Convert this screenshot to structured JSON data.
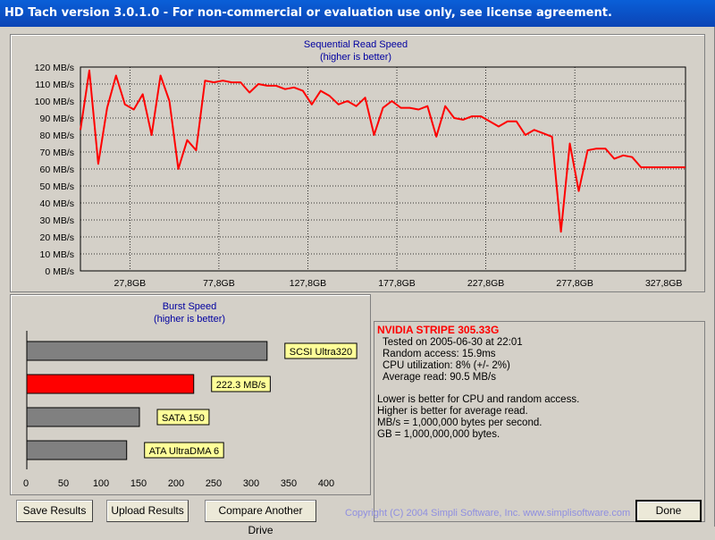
{
  "window": {
    "title": "HD Tach version 3.0.1.0  - For non-commercial or evaluation use only, see license agreement."
  },
  "read_chart": {
    "title": "Sequential Read Speed",
    "subtitle": "(higher is better)",
    "y_ticks": [
      "120 MB/s",
      "110 MB/s",
      "100 MB/s",
      "90 MB/s",
      "80 MB/s",
      "70 MB/s",
      "60 MB/s",
      "50 MB/s",
      "40 MB/s",
      "30 MB/s",
      "20 MB/s",
      "10 MB/s",
      "0 MB/s"
    ],
    "x_ticks": [
      "27,8GB",
      "77,8GB",
      "127,8GB",
      "177,8GB",
      "227,8GB",
      "277,8GB",
      "327,8GB"
    ]
  },
  "burst_chart": {
    "title": "Burst Speed",
    "subtitle": "(higher is better)",
    "x_ticks": [
      "0",
      "50",
      "100",
      "150",
      "200",
      "250",
      "300",
      "350",
      "400"
    ],
    "bars": [
      {
        "label": "SCSI Ultra320",
        "value": 320,
        "color": "#808080"
      },
      {
        "label": "222.3 MB/s",
        "value": 222.3,
        "color": "#ff0000"
      },
      {
        "label": "SATA 150",
        "value": 150,
        "color": "#808080"
      },
      {
        "label": "ATA UltraDMA 6",
        "value": 133,
        "color": "#808080"
      }
    ]
  },
  "results": {
    "drive_name": "NVIDIA  STRIPE  305.33G",
    "tested_on": "Tested on 2005-06-30 at 22:01",
    "random_access": "Random access: 15.9ms",
    "cpu_utilization": "CPU utilization: 8% (+/- 2%)",
    "average_read": "Average read: 90.5 MB/s",
    "note_lower": "Lower is better for CPU and random access.",
    "note_higher": "Higher is better for average read.",
    "note_mbs": "MB/s = 1,000,000 bytes per second.",
    "note_gb": "GB = 1,000,000,000 bytes."
  },
  "buttons": {
    "save": "Save Results",
    "upload": "Upload Results",
    "compare": "Compare Another Drive",
    "done": "Done"
  },
  "footer": {
    "copyright": "Copyright (C) 2004 Simpli Software, Inc. www.simplisoftware.com"
  },
  "chart_data": [
    {
      "type": "line",
      "title": "Sequential Read Speed",
      "subtitle": "(higher is better)",
      "ylabel": "",
      "xlabel": "",
      "ylim": [
        0,
        120
      ],
      "xlim": [
        0,
        340
      ],
      "grid": true,
      "series": [
        {
          "color": "#ff0000",
          "x": [
            0,
            5,
            10,
            15,
            20,
            25,
            30,
            35,
            40,
            45,
            50,
            55,
            60,
            65,
            70,
            75,
            80,
            85,
            90,
            95,
            100,
            105,
            110,
            115,
            120,
            125,
            130,
            135,
            140,
            145,
            150,
            155,
            160,
            165,
            170,
            175,
            180,
            185,
            190,
            195,
            200,
            205,
            210,
            215,
            220,
            225,
            230,
            235,
            240,
            245,
            250,
            255,
            260,
            265,
            270,
            275,
            280,
            285,
            290,
            295,
            300,
            305,
            310,
            315,
            320,
            325,
            330,
            335,
            340
          ],
          "y": [
            83,
            118,
            63,
            96,
            115,
            98,
            95,
            104,
            80,
            115,
            100,
            60,
            77,
            71,
            112,
            111,
            112,
            111,
            111,
            105,
            110,
            109,
            109,
            107,
            108,
            106,
            98,
            106,
            103,
            98,
            100,
            97,
            102,
            80,
            96,
            100,
            96,
            96,
            95,
            97,
            79,
            97,
            90,
            89,
            91,
            91,
            88,
            85,
            88,
            88,
            80,
            83,
            81,
            79,
            23,
            75,
            47,
            71,
            72,
            72,
            66,
            68,
            67,
            61,
            61,
            61,
            61,
            61,
            61
          ]
        }
      ]
    },
    {
      "type": "bar",
      "title": "Burst Speed",
      "subtitle": "(higher is better)",
      "orientation": "horizontal",
      "categories": [
        "SCSI Ultra320",
        "222.3 MB/s",
        "SATA 150",
        "ATA UltraDMA 6"
      ],
      "values": [
        320,
        222.3,
        150,
        133
      ],
      "xlim": [
        0,
        400
      ]
    }
  ]
}
